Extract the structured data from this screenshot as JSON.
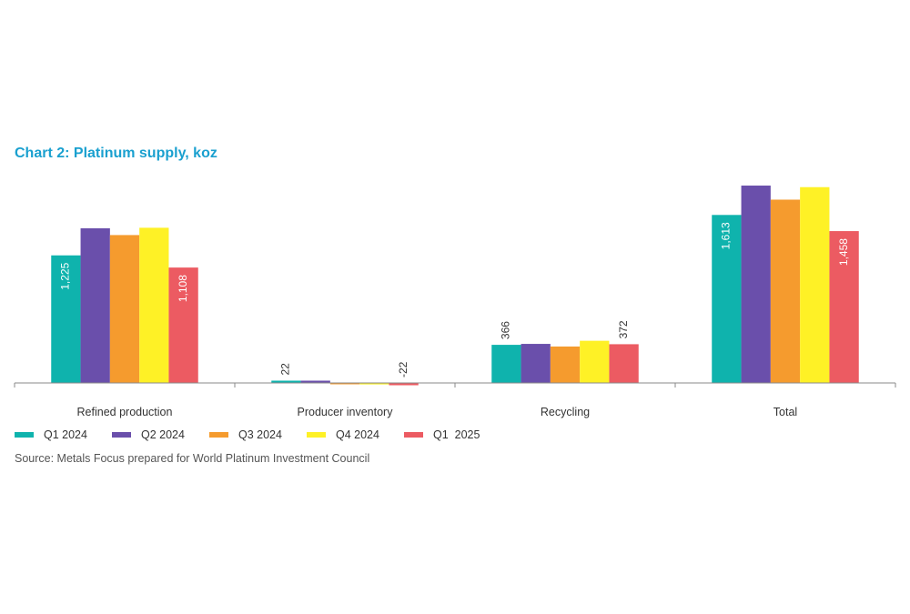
{
  "chart_title": "Chart 2: Platinum supply, koz",
  "source": "Source: Metals Focus prepared for World Platinum Investment Council",
  "colors": {
    "title": "#1aa0cf",
    "axis": "#8a8a8a",
    "text": "#333333"
  },
  "chart_data": {
    "type": "bar",
    "title": "Chart 2: Platinum supply, koz",
    "xlabel": "",
    "ylabel": "",
    "grid": false,
    "legend_position": "bottom-left",
    "categories": [
      "Refined production",
      "Producer inventory",
      "Recycling",
      "Total"
    ],
    "series": [
      {
        "name": "Q1 2024",
        "color": "#0fb3ad",
        "values": [
          1225,
          22,
          366,
          1613
        ],
        "labels": [
          "1,225",
          "22",
          "366",
          "1,613"
        ]
      },
      {
        "name": "Q2 2024",
        "color": "#6a4fab",
        "values": [
          1485,
          22,
          375,
          1895
        ],
        "labels": [
          "",
          "",
          "",
          ""
        ]
      },
      {
        "name": "Q3 2024",
        "color": "#f59b2e",
        "values": [
          1420,
          -13,
          350,
          1760
        ],
        "labels": [
          "",
          "",
          "",
          ""
        ]
      },
      {
        "name": "Q4 2024",
        "color": "#fef126",
        "values": [
          1490,
          -14,
          405,
          1880
        ],
        "labels": [
          "",
          "",
          "",
          ""
        ]
      },
      {
        "name": "Q1  2025",
        "color": "#ec5b62",
        "values": [
          1108,
          -22,
          372,
          1458
        ],
        "labels": [
          "1,108",
          "-22",
          "372",
          "1,458"
        ]
      }
    ],
    "ylim": [
      -60,
      2200
    ]
  }
}
